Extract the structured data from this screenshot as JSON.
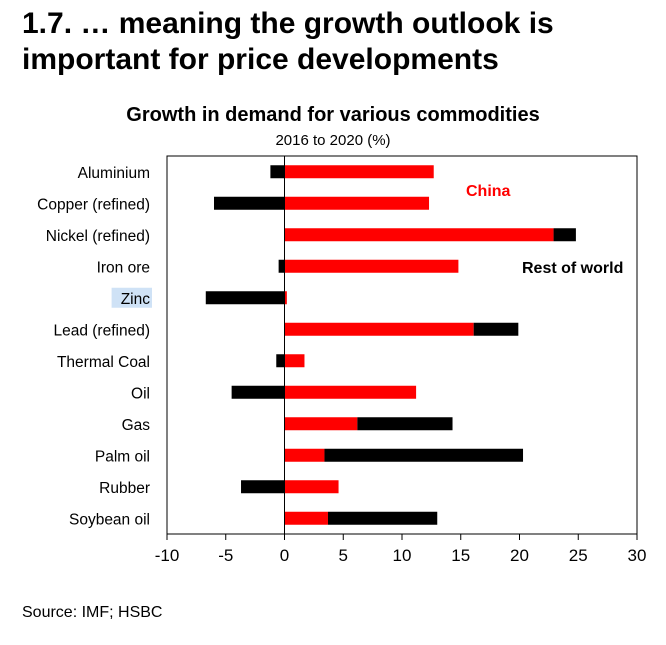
{
  "slide": {
    "title": "1.7. … meaning the growth outlook is important for price developments",
    "source": "Source: IMF; HSBC"
  },
  "chart_data": {
    "type": "bar",
    "orientation": "horizontal",
    "stacked": true,
    "title": "Growth in demand for various commodities",
    "subtitle": "2016 to 2020 (%)",
    "xlabel": "",
    "ylabel": "",
    "xlim": [
      -10,
      30
    ],
    "xticks": [
      -10,
      -5,
      0,
      5,
      10,
      15,
      20,
      25,
      30
    ],
    "categories": [
      "Aluminium",
      "Copper (refined)",
      "Nickel (refined)",
      "Iron ore",
      "Zinc",
      "Lead (refined)",
      "Thermal  Coal",
      "Oil",
      "Gas",
      "Palm oil",
      "Rubber",
      "Soybean oil"
    ],
    "highlighted_category": "Zinc",
    "series": [
      {
        "name": "China",
        "color": "#ff0000",
        "values": [
          12.7,
          12.3,
          22.9,
          14.8,
          0.2,
          16.1,
          1.7,
          11.2,
          6.2,
          3.4,
          4.6,
          3.7
        ]
      },
      {
        "name": "Rest of world",
        "color": "#000000",
        "values": [
          -1.2,
          -6.0,
          1.9,
          -0.5,
          -6.7,
          3.8,
          -0.7,
          -4.5,
          8.1,
          16.9,
          -3.7,
          9.3
        ]
      }
    ],
    "legend": [
      {
        "label": "China",
        "color": "#ff0000",
        "placement": "near top bars"
      },
      {
        "label": "Rest of world",
        "color": "#000000",
        "placement": "right of bars"
      }
    ],
    "grid": false
  }
}
